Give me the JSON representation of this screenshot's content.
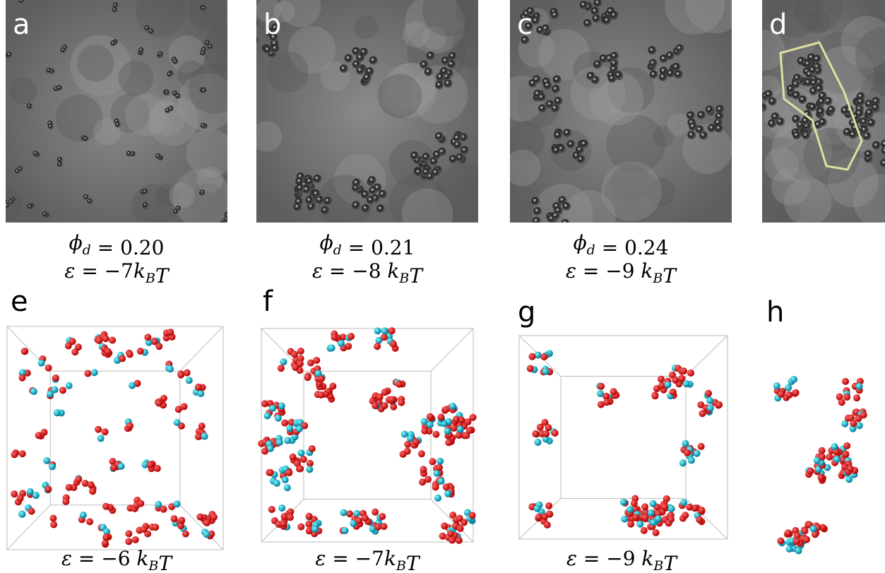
{
  "panels_top": [
    {
      "label": "a",
      "caption": [
        [
          {
            "math": "ϕ"
          },
          {
            "sub": "d"
          },
          {
            "text": " = 0.20"
          }
        ],
        [
          {
            "math": "ε"
          },
          {
            "text": " = −7"
          },
          {
            "math": "k"
          },
          {
            "sub": "B"
          },
          {
            "math": "T"
          }
        ]
      ]
    },
    {
      "label": "b",
      "caption": [
        [
          {
            "math": "ϕ"
          },
          {
            "sub": "d"
          },
          {
            "text": " = 0.21"
          }
        ],
        [
          {
            "math": "ε"
          },
          {
            "text": " = −8 "
          },
          {
            "math": "k"
          },
          {
            "sub": "B"
          },
          {
            "math": "T"
          }
        ]
      ]
    },
    {
      "label": "c",
      "caption": [
        [
          {
            "math": "ϕ"
          },
          {
            "sub": "d"
          },
          {
            "text": " = 0.24"
          }
        ],
        [
          {
            "math": "ε"
          },
          {
            "text": " = −9 "
          },
          {
            "math": "k"
          },
          {
            "sub": "B"
          },
          {
            "math": "T"
          }
        ]
      ]
    },
    {
      "label": "d",
      "caption": []
    }
  ],
  "panels_bottom": [
    {
      "label": "e",
      "caption": [
        [
          {
            "math": "ε"
          },
          {
            "text": " = −6 "
          },
          {
            "math": "k"
          },
          {
            "sub": "B"
          },
          {
            "math": "T"
          }
        ]
      ]
    },
    {
      "label": "f",
      "caption": [
        [
          {
            "math": "ε"
          },
          {
            "text": " = −7"
          },
          {
            "math": "k"
          },
          {
            "sub": "B"
          },
          {
            "math": "T"
          }
        ]
      ]
    },
    {
      "label": "g",
      "caption": [
        [
          {
            "math": "ε"
          },
          {
            "text": " = −9 "
          },
          {
            "math": "k"
          },
          {
            "sub": "B"
          },
          {
            "math": "T"
          }
        ]
      ]
    },
    {
      "label": "h",
      "caption": []
    }
  ]
}
